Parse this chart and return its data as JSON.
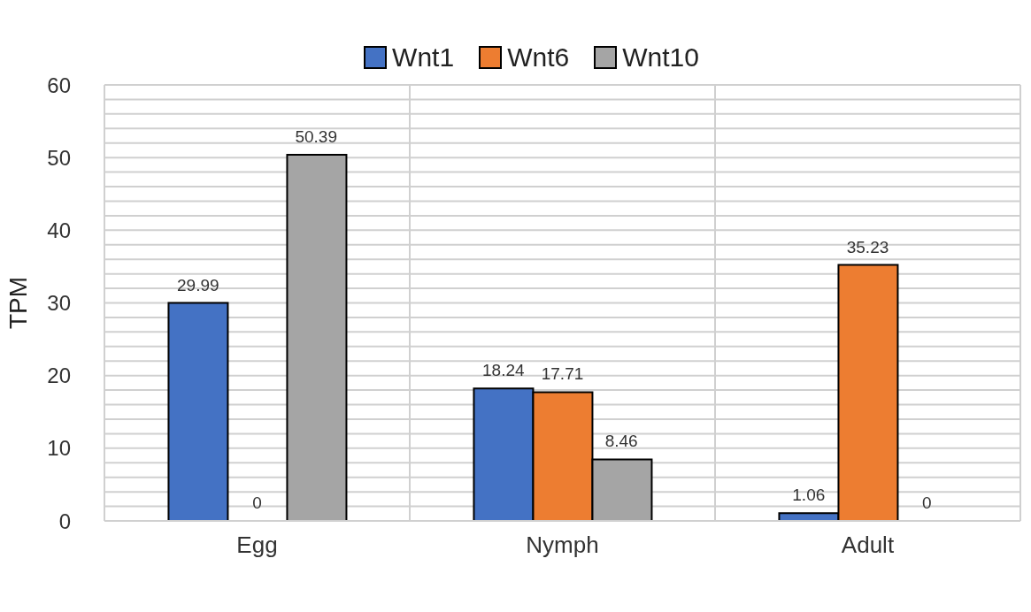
{
  "chart_data": {
    "type": "bar",
    "ylabel": "TPM",
    "categories": [
      "Egg",
      "Nymph",
      "Adult"
    ],
    "series": [
      {
        "name": "Wnt1",
        "color": "#4472c4",
        "values": [
          29.99,
          18.24,
          1.06
        ]
      },
      {
        "name": "Wnt6",
        "color": "#ed7d31",
        "values": [
          0,
          17.71,
          35.23
        ]
      },
      {
        "name": "Wnt10",
        "color": "#a5a5a5",
        "values": [
          50.39,
          8.46,
          0
        ]
      }
    ],
    "ylim": [
      0,
      60
    ],
    "yticks": [
      0,
      {
        "value": 2,
        "label": null
      },
      {
        "value": 4,
        "label": null
      },
      {
        "value": 6,
        "label": null
      },
      {
        "value": 8,
        "label": null
      },
      10,
      {
        "value": 12,
        "label": null
      },
      {
        "value": 14,
        "label": null
      },
      {
        "value": 16,
        "label": null
      },
      {
        "value": 18,
        "label": null
      },
      20,
      {
        "value": 22,
        "label": null
      },
      {
        "value": 24,
        "label": null
      },
      {
        "value": 26,
        "label": null
      },
      {
        "value": 28,
        "label": null
      },
      30,
      {
        "value": 32,
        "label": null
      },
      {
        "value": 34,
        "label": null
      },
      {
        "value": 36,
        "label": null
      },
      {
        "value": 38,
        "label": null
      },
      40,
      {
        "value": 42,
        "label": null
      },
      {
        "value": 44,
        "label": null
      },
      {
        "value": 46,
        "label": null
      },
      {
        "value": 48,
        "label": null
      },
      50,
      {
        "value": 52,
        "label": null
      },
      {
        "value": 54,
        "label": null
      },
      {
        "value": 56,
        "label": null
      },
      {
        "value": 58,
        "label": null
      },
      60
    ],
    "grid": true,
    "legend": "top",
    "data_labels": true
  }
}
